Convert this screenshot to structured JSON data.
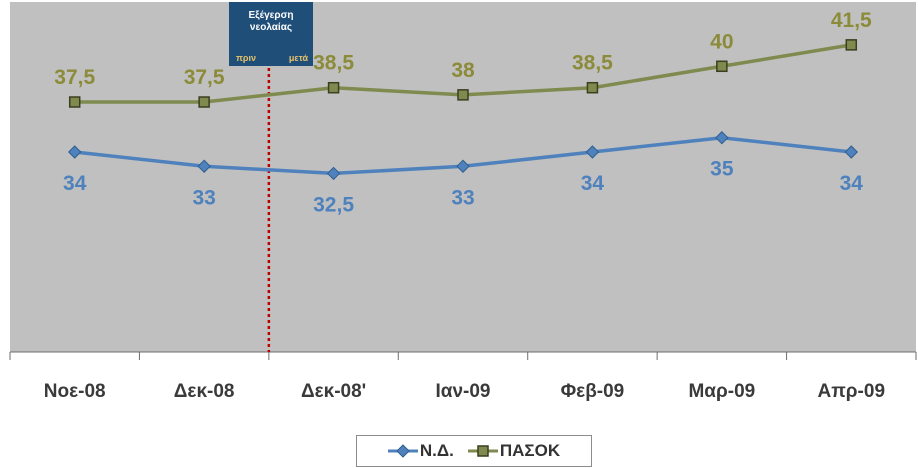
{
  "chart_data": {
    "type": "line",
    "categories": [
      "Νοε-08",
      "Δεκ-08",
      "Δεκ-08'",
      "Ιαν-09",
      "Φεβ-09",
      "Μαρ-09",
      "Απρ-09"
    ],
    "series": [
      {
        "name": "Ν.Δ.",
        "values": [
          34,
          33,
          32.5,
          33,
          34,
          35,
          34
        ],
        "labels": [
          "34",
          "33",
          "32,5",
          "33",
          "34",
          "35",
          "34"
        ],
        "color": "#4f81bd",
        "label_position": "below"
      },
      {
        "name": "ΠΑΣΟΚ",
        "values": [
          37.5,
          37.5,
          38.5,
          38,
          38.5,
          40,
          41.5
        ],
        "labels": [
          "37,5",
          "37,5",
          "38,5",
          "38",
          "38,5",
          "40",
          "41,5"
        ],
        "color": "#7f8a4f",
        "label_color": "#8b8b3a",
        "label_position": "above"
      }
    ],
    "plot_background": "#c0c0c0",
    "grid": false,
    "legend_position": "bottom",
    "event_marker": {
      "between_categories": [
        "Δεκ-08",
        "Δεκ-08'"
      ],
      "title": "Εξέγερση νεολαίας",
      "before_label": "πριν",
      "after_label": "μετά",
      "line_color": "#c00000",
      "box_color": "#1f4e79"
    }
  }
}
